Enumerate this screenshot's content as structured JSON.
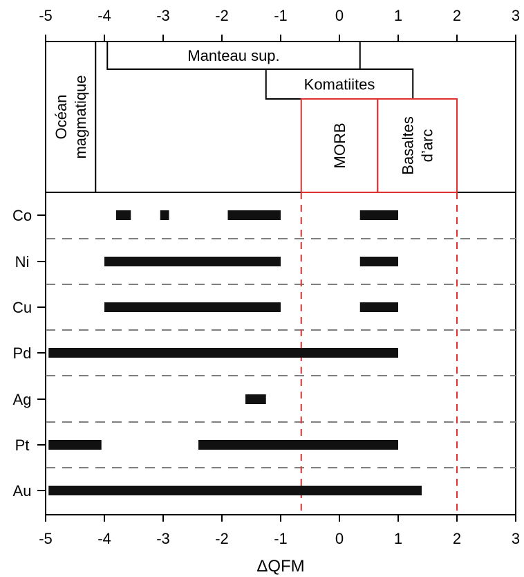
{
  "chart_data": {
    "type": "range-bar",
    "xlabel": "ΔQFM",
    "xlim": [
      -5,
      3
    ],
    "xticks": [
      "-5",
      "-4",
      "-3",
      "-2",
      "-1",
      "0",
      "1",
      "2",
      "3"
    ],
    "colors": {
      "bar": "#111111",
      "frame": "#000000",
      "highlight": "#e03030",
      "divider": "#7f7f7f"
    },
    "regions": [
      {
        "label": "Océan magmatique",
        "lines": [
          "Océan",
          "magmatique"
        ],
        "range": [
          -5,
          -4.15
        ],
        "orientation": "vertical",
        "color": "#000000"
      },
      {
        "label": "Manteau sup.",
        "lines": [
          "Manteau sup."
        ],
        "range": [
          -3.95,
          0.35
        ],
        "orientation": "horizontal",
        "color": "#000000"
      },
      {
        "label": "Komatiites",
        "lines": [
          "Komatiites"
        ],
        "range": [
          -1.25,
          1.25
        ],
        "orientation": "horizontal",
        "color": "#000000"
      },
      {
        "label": "MORB",
        "lines": [
          "MORB"
        ],
        "range": [
          -0.65,
          0.65
        ],
        "orientation": "vertical",
        "color": "#e03030"
      },
      {
        "label": "Basaltes d'arc",
        "lines": [
          "Basaltes",
          "d’arc"
        ],
        "range": [
          0.65,
          2.0
        ],
        "orientation": "vertical",
        "color": "#e03030"
      }
    ],
    "red_guides": [
      -0.65,
      2.0
    ],
    "series": [
      {
        "name": "Co",
        "ranges": [
          [
            -3.8,
            -3.55
          ],
          [
            -3.05,
            -2.9
          ],
          [
            -1.9,
            -1.0
          ],
          [
            0.35,
            1.0
          ]
        ]
      },
      {
        "name": "Ni",
        "ranges": [
          [
            -4.0,
            -1.0
          ],
          [
            0.35,
            1.0
          ]
        ]
      },
      {
        "name": "Cu",
        "ranges": [
          [
            -4.0,
            -1.0
          ],
          [
            0.35,
            1.0
          ]
        ]
      },
      {
        "name": "Pd",
        "ranges": [
          [
            -4.95,
            1.0
          ]
        ]
      },
      {
        "name": "Ag",
        "ranges": [
          [
            -1.6,
            -1.25
          ]
        ]
      },
      {
        "name": "Pt",
        "ranges": [
          [
            -4.95,
            -4.05
          ],
          [
            -2.4,
            1.0
          ]
        ]
      },
      {
        "name": "Au",
        "ranges": [
          [
            -4.95,
            1.4
          ]
        ]
      }
    ]
  }
}
